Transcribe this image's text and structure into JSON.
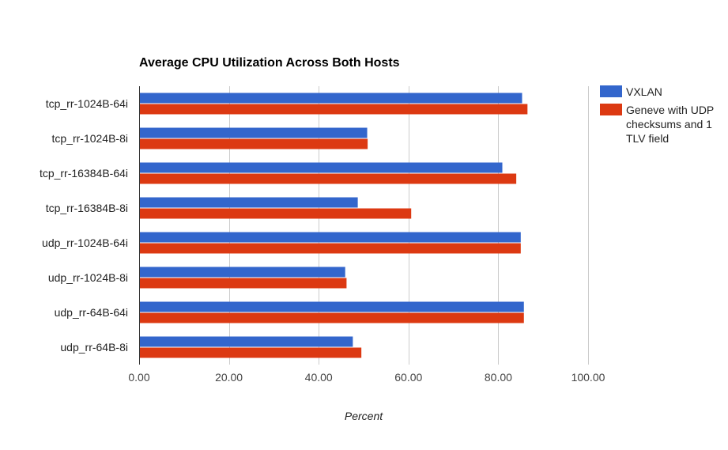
{
  "chart_data": {
    "type": "bar",
    "orientation": "horizontal",
    "title": "Average CPU Utilization Across Both Hosts",
    "xlabel": "Percent",
    "ylabel": "",
    "xlim": [
      0,
      100
    ],
    "x_ticks": [
      "0.00",
      "20.00",
      "40.00",
      "60.00",
      "80.00",
      "100.00"
    ],
    "x_tick_values": [
      0,
      20,
      40,
      60,
      80,
      100
    ],
    "grid": true,
    "legend_position": "right",
    "categories": [
      "tcp_rr-1024B-64i",
      "tcp_rr-1024B-8i",
      "tcp_rr-16384B-64i",
      "tcp_rr-16384B-8i",
      "udp_rr-1024B-64i",
      "udp_rr-1024B-8i",
      "udp_rr-64B-64i",
      "udp_rr-64B-8i"
    ],
    "series": [
      {
        "name": "VXLAN",
        "legend_lines": [
          "VXLAN"
        ],
        "color": "#3366cc",
        "values": [
          85.3,
          50.8,
          80.9,
          48.7,
          85.0,
          45.9,
          85.7,
          47.6
        ]
      },
      {
        "name": "Geneve with UDP checksums and 1 TLV field",
        "legend_lines": [
          "Geneve with UDP",
          "checksums and 1",
          "TLV field"
        ],
        "color": "#dc3912",
        "values": [
          86.5,
          50.9,
          84.0,
          60.6,
          85.0,
          46.2,
          85.7,
          49.5
        ]
      }
    ]
  }
}
